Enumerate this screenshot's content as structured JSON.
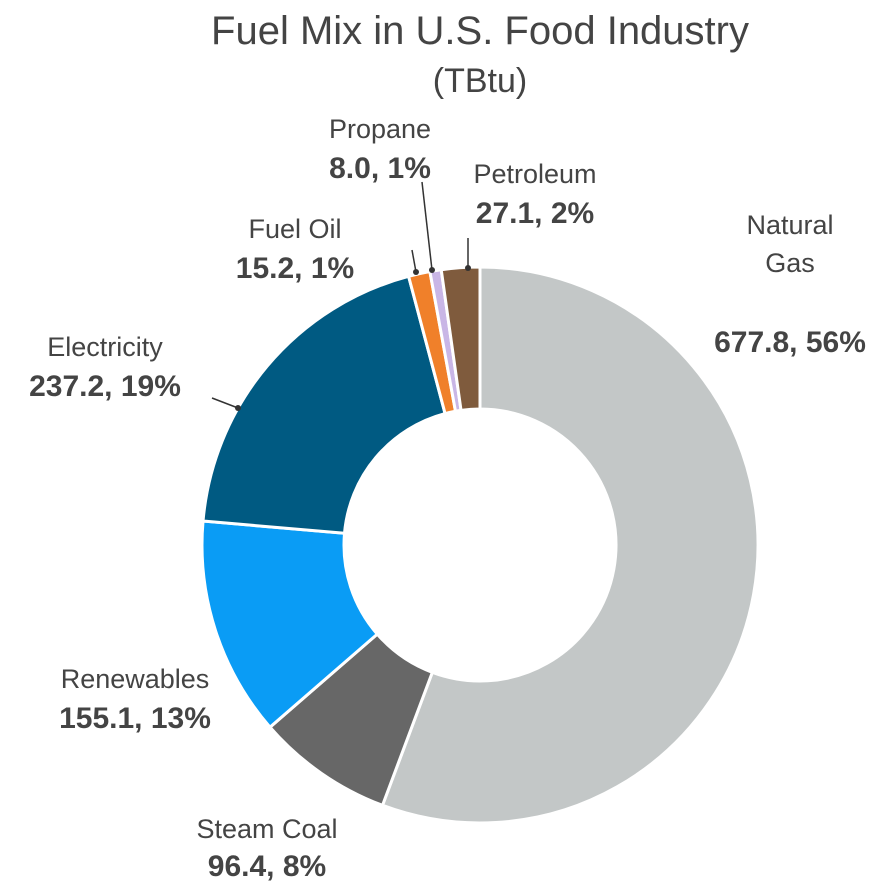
{
  "chart_data": {
    "type": "donut",
    "title": "Fuel Mix in U.S. Food Industry",
    "subtitle": "(TBtu)",
    "categories": [
      "Natural Gas",
      "Steam Coal",
      "Renewables",
      "Electricity",
      "Fuel Oil",
      "Propane",
      "Petroleum"
    ],
    "values": [
      677.8,
      96.4,
      155.1,
      237.2,
      15.2,
      8.0,
      27.1
    ],
    "value_labels": [
      "677.8",
      "96.4",
      "155.1",
      "237.2",
      "15.2",
      "8.0",
      "27.1"
    ],
    "percents": [
      56,
      8,
      13,
      19,
      1,
      1,
      2
    ],
    "percent_labels": [
      "56%",
      "8%",
      "13%",
      "19%",
      "1%",
      "1%",
      "2%"
    ],
    "label_separator": ",",
    "colors": [
      "#c3c7c7",
      "#676767",
      "#0a9cf5",
      "#005a82",
      "#f0802a",
      "#c9b6e6",
      "#7f5b3d"
    ]
  }
}
